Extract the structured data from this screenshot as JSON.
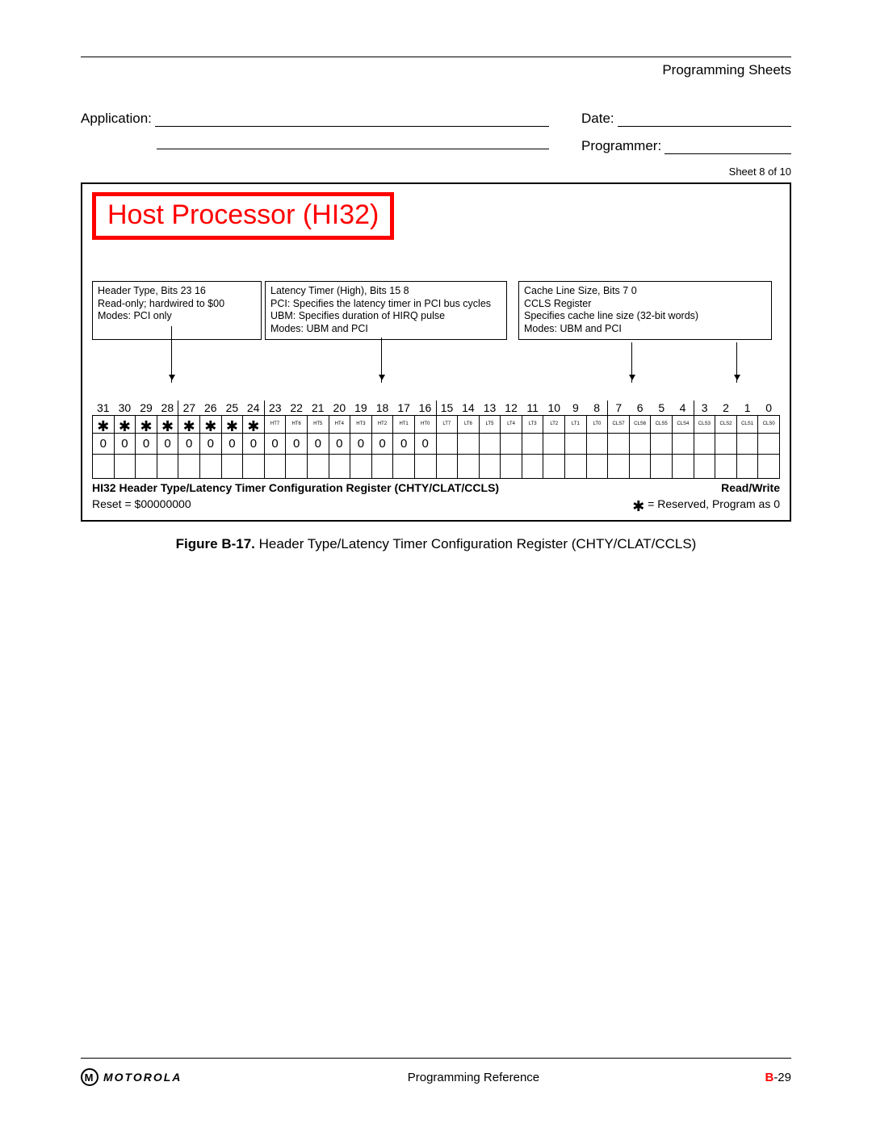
{
  "header": {
    "section": "Programming Sheets"
  },
  "form": {
    "application_label": "Application:",
    "date_label": "Date:",
    "programmer_label": "Programmer:",
    "sheet_label": "Sheet 8 of 10"
  },
  "diagram": {
    "title": "Host Processor (HI32)",
    "box1": {
      "l1": "Header Type, Bits 23 16",
      "l2": "Read-only; hardwired to $00",
      "l3": "Modes: PCI only"
    },
    "box2": {
      "l1": "Latency Timer (High), Bits 15 8",
      "l2": "PCI: Specifies the latency timer in PCI bus cycles",
      "l3": "UBM: Specifies duration of HIRQ pulse",
      "l4": "Modes: UBM and PCI"
    },
    "box3": {
      "l1": "Cache Line Size, Bits 7 0",
      "l2": "CCLS Register",
      "l3": "Specifies cache line size (32-bit words)",
      "l4": "Modes: UBM and PCI"
    },
    "bit_numbers": [
      "31",
      "30",
      "29",
      "28",
      "27",
      "26",
      "25",
      "24",
      "23",
      "22",
      "21",
      "20",
      "19",
      "18",
      "17",
      "16",
      "15",
      "14",
      "13",
      "12",
      "11",
      "10",
      "9",
      "8",
      "7",
      "6",
      "5",
      "4",
      "3",
      "2",
      "1",
      "0"
    ],
    "bit_labels": [
      "*",
      "*",
      "*",
      "*",
      "*",
      "*",
      "*",
      "*",
      "HT7",
      "HT6",
      "HT5",
      "HT4",
      "HT3",
      "HT2",
      "HT1",
      "HT0",
      "LT7",
      "LT6",
      "LT5",
      "LT4",
      "LT3",
      "LT2",
      "LT1",
      "LT0",
      "CLS7",
      "CLS6",
      "CLS5",
      "CLS4",
      "CLS3",
      "CLS2",
      "CLS1",
      "CLS0"
    ],
    "bit_values": [
      "0",
      "0",
      "0",
      "0",
      "0",
      "0",
      "0",
      "0",
      "0",
      "0",
      "0",
      "0",
      "0",
      "0",
      "0",
      "0",
      "",
      "",
      "",
      "",
      "",
      "",
      "",
      "",
      "",
      "",
      "",
      "",
      "",
      "",
      "",
      ""
    ],
    "separators": [
      4,
      8,
      16,
      24,
      28
    ],
    "reg_name": "HI32 Header Type/Latency Timer Configuration Register (CHTY/CLAT/CCLS)",
    "rw": "Read/Write",
    "reset": "Reset = $00000000",
    "reserved_note": " = Reserved, Program as 0"
  },
  "caption": {
    "figno": "Figure B-17.",
    "text": " Header Type/Latency Timer Configuration Register (CHTY/CLAT/CCLS)"
  },
  "footer": {
    "brand": "MOTOROLA",
    "center": "Programming Reference",
    "page_prefix": "B",
    "page_suffix": "-29"
  }
}
